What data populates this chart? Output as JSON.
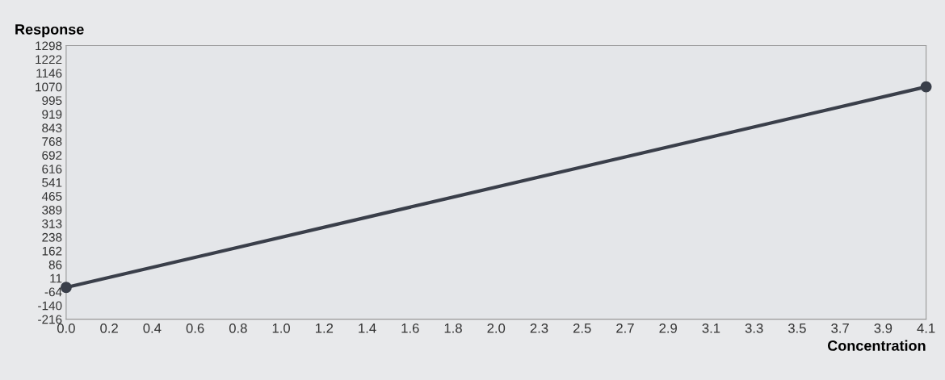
{
  "chart_data": {
    "type": "line",
    "ylabel": "Response",
    "xlabel": "Concentration",
    "x": [
      0,
      4.1
    ],
    "series": [
      {
        "color": "#3a3f4a",
        "values": [
          -40,
          1070
        ]
      }
    ],
    "marker": "circle",
    "line_style": "solid",
    "xlim": [
      0,
      4.1
    ],
    "ylim": [
      -216,
      1298
    ],
    "xticks": [
      {
        "value": 0,
        "label": "0.0"
      },
      {
        "value": 0.205,
        "label": "0.2"
      },
      {
        "value": 0.41,
        "label": "0.4"
      },
      {
        "value": 0.615,
        "label": "0.6"
      },
      {
        "value": 0.82,
        "label": "0.8"
      },
      {
        "value": 1.025,
        "label": "1.0"
      },
      {
        "value": 1.23,
        "label": "1.2"
      },
      {
        "value": 1.435,
        "label": "1.4"
      },
      {
        "value": 1.64,
        "label": "1.6"
      },
      {
        "value": 1.845,
        "label": "1.8"
      },
      {
        "value": 2.05,
        "label": "2.0"
      },
      {
        "value": 2.255,
        "label": "2.3"
      },
      {
        "value": 2.46,
        "label": "2.5"
      },
      {
        "value": 2.665,
        "label": "2.7"
      },
      {
        "value": 2.87,
        "label": "2.9"
      },
      {
        "value": 3.075,
        "label": "3.1"
      },
      {
        "value": 3.28,
        "label": "3.3"
      },
      {
        "value": 3.485,
        "label": "3.5"
      },
      {
        "value": 3.69,
        "label": "3.7"
      },
      {
        "value": 3.895,
        "label": "3.9"
      },
      {
        "value": 4.1,
        "label": "4.1"
      }
    ],
    "yticks": [
      1298,
      1222,
      1146,
      1070,
      995,
      919,
      843,
      768,
      692,
      616,
      541,
      465,
      389,
      313,
      238,
      162,
      86,
      11,
      -64,
      -140,
      -216
    ]
  }
}
